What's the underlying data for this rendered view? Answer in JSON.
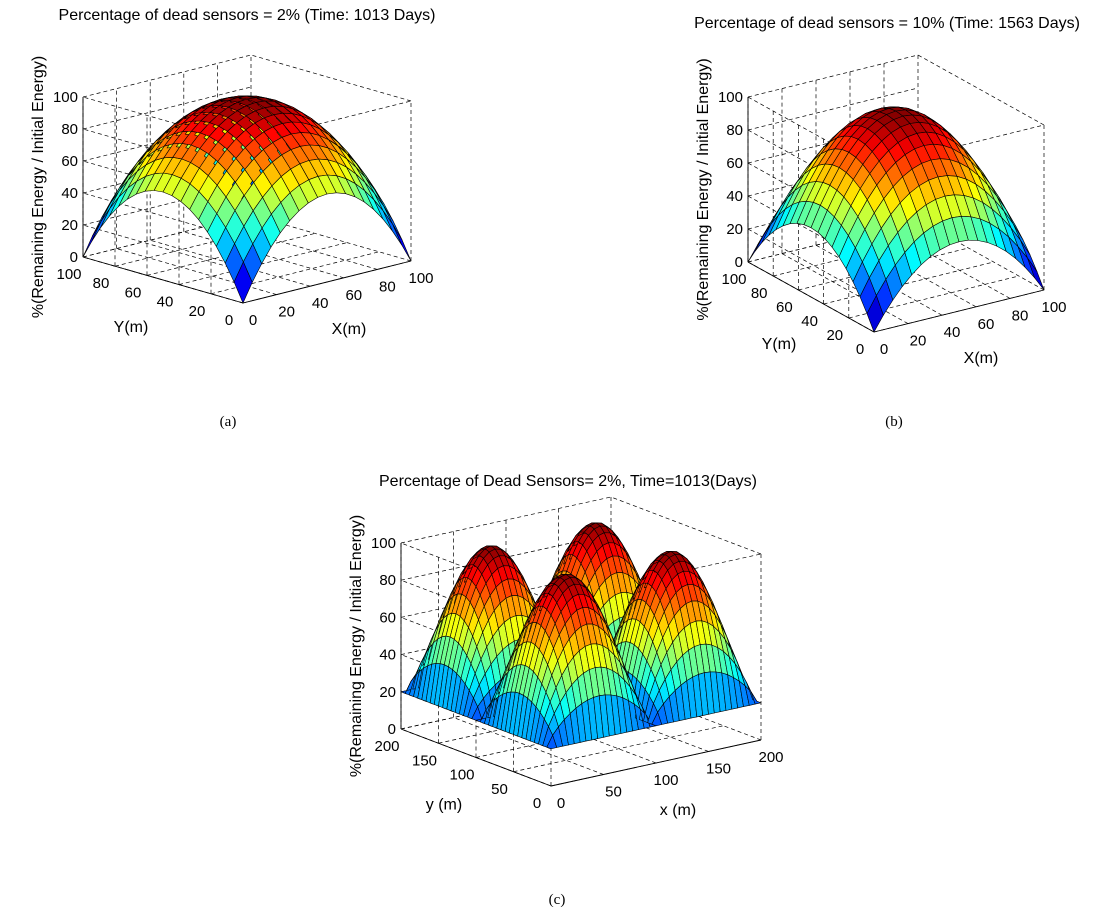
{
  "chart_data": [
    {
      "type": "surface",
      "panel_caption": "(a)",
      "title": "Percentage of dead sensors = 2% (Time: 1013 Days)",
      "xlabel": "X(m)",
      "ylabel": "Y(m)",
      "zlabel": "%(Remaining Energy / Initial Energy)",
      "xlim": [
        0,
        100
      ],
      "ylim": [
        0,
        100
      ],
      "zlim": [
        0,
        100
      ],
      "x_ticks": [
        0,
        20,
        40,
        60,
        80,
        100
      ],
      "y_ticks": [
        0,
        20,
        40,
        60,
        80,
        100
      ],
      "z_ticks": [
        0,
        20,
        40,
        60,
        80,
        100
      ],
      "surface": {
        "shape": "single-peak",
        "center": [
          50,
          50
        ],
        "peak": 100,
        "corner_value": 0,
        "edge_mid_value": 55
      },
      "grid": true,
      "colormap": "jet"
    },
    {
      "type": "surface",
      "panel_caption": "(b)",
      "title": "Percentage of dead sensors = 10% (Time: 1563 Days)",
      "xlabel": "X(m)",
      "ylabel": "Y(m)",
      "zlabel": "%(Remaining Energy / Initial Energy)",
      "xlim": [
        0,
        100
      ],
      "ylim": [
        0,
        100
      ],
      "zlim": [
        0,
        100
      ],
      "x_ticks": [
        0,
        20,
        40,
        60,
        80,
        100
      ],
      "y_ticks": [
        0,
        20,
        40,
        60,
        80,
        100
      ],
      "z_ticks": [
        0,
        20,
        40,
        60,
        80,
        100
      ],
      "surface": {
        "shape": "single-peak",
        "center": [
          50,
          50
        ],
        "peak": 100,
        "corner_value": 0,
        "edge_mid_value": 42
      },
      "grid": true,
      "colormap": "jet"
    },
    {
      "type": "surface",
      "panel_caption": "(c)",
      "title": "Percentage of Dead Sensors= 2%, Time=1013(Days)",
      "xlabel": "x (m)",
      "ylabel": "y (m)",
      "zlabel": "%(Remaining Energy / Initial Energy)",
      "xlim": [
        0,
        200
      ],
      "ylim": [
        0,
        200
      ],
      "zlim": [
        0,
        100
      ],
      "x_ticks": [
        0,
        50,
        100,
        150,
        200
      ],
      "y_ticks": [
        0,
        50,
        100,
        150,
        200
      ],
      "z_ticks": [
        0,
        20,
        40,
        60,
        80,
        100
      ],
      "surface": {
        "shape": "four-peaks",
        "peak_centers": [
          [
            50,
            50
          ],
          [
            150,
            50
          ],
          [
            50,
            150
          ],
          [
            150,
            150
          ]
        ],
        "peak": 100,
        "minimum": 0
      },
      "grid": true,
      "colormap": "jet"
    }
  ]
}
